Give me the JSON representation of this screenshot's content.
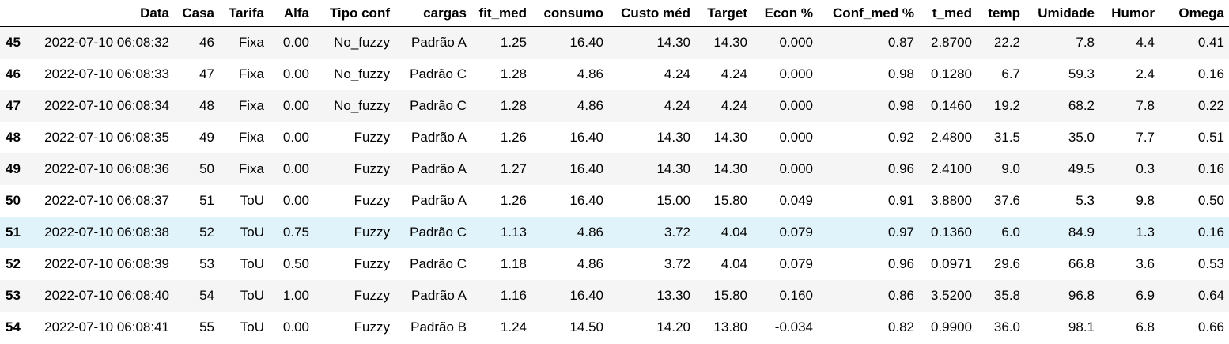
{
  "table": {
    "index_header": "",
    "columns": [
      "Data",
      "Casa",
      "Tarifa",
      "Alfa",
      "Tipo conf",
      "cargas",
      "fit_med",
      "consumo",
      "Custo méd",
      "Target",
      "Econ %",
      "Conf_med %",
      "t_med",
      "temp",
      "Umidade",
      "Humor",
      "Omega"
    ],
    "hovered_row_index": 6,
    "rows": [
      {
        "index": "45",
        "cells": [
          "2022-07-10 06:08:32",
          "46",
          "Fixa",
          "0.00",
          "No_fuzzy",
          "Padrão A",
          "1.25",
          "16.40",
          "14.30",
          "14.30",
          "0.000",
          "0.87",
          "2.8700",
          "22.2",
          "7.8",
          "4.4",
          "0.41"
        ]
      },
      {
        "index": "46",
        "cells": [
          "2022-07-10 06:08:33",
          "47",
          "Fixa",
          "0.00",
          "No_fuzzy",
          "Padrão C",
          "1.28",
          "4.86",
          "4.24",
          "4.24",
          "0.000",
          "0.98",
          "0.1280",
          "6.7",
          "59.3",
          "2.4",
          "0.16"
        ]
      },
      {
        "index": "47",
        "cells": [
          "2022-07-10 06:08:34",
          "48",
          "Fixa",
          "0.00",
          "No_fuzzy",
          "Padrão C",
          "1.28",
          "4.86",
          "4.24",
          "4.24",
          "0.000",
          "0.98",
          "0.1460",
          "19.2",
          "68.2",
          "7.8",
          "0.22"
        ]
      },
      {
        "index": "48",
        "cells": [
          "2022-07-10 06:08:35",
          "49",
          "Fixa",
          "0.00",
          "Fuzzy",
          "Padrão A",
          "1.26",
          "16.40",
          "14.30",
          "14.30",
          "0.000",
          "0.92",
          "2.4800",
          "31.5",
          "35.0",
          "7.7",
          "0.51"
        ]
      },
      {
        "index": "49",
        "cells": [
          "2022-07-10 06:08:36",
          "50",
          "Fixa",
          "0.00",
          "Fuzzy",
          "Padrão A",
          "1.27",
          "16.40",
          "14.30",
          "14.30",
          "0.000",
          "0.96",
          "2.4100",
          "9.0",
          "49.5",
          "0.3",
          "0.16"
        ]
      },
      {
        "index": "50",
        "cells": [
          "2022-07-10 06:08:37",
          "51",
          "ToU",
          "0.00",
          "Fuzzy",
          "Padrão A",
          "1.26",
          "16.40",
          "15.00",
          "15.80",
          "0.049",
          "0.91",
          "3.8800",
          "37.6",
          "5.3",
          "9.8",
          "0.50"
        ]
      },
      {
        "index": "51",
        "cells": [
          "2022-07-10 06:08:38",
          "52",
          "ToU",
          "0.75",
          "Fuzzy",
          "Padrão C",
          "1.13",
          "4.86",
          "3.72",
          "4.04",
          "0.079",
          "0.97",
          "0.1360",
          "6.0",
          "84.9",
          "1.3",
          "0.16"
        ]
      },
      {
        "index": "52",
        "cells": [
          "2022-07-10 06:08:39",
          "53",
          "ToU",
          "0.50",
          "Fuzzy",
          "Padrão C",
          "1.18",
          "4.86",
          "3.72",
          "4.04",
          "0.079",
          "0.96",
          "0.0971",
          "29.6",
          "66.8",
          "3.6",
          "0.53"
        ]
      },
      {
        "index": "53",
        "cells": [
          "2022-07-10 06:08:40",
          "54",
          "ToU",
          "1.00",
          "Fuzzy",
          "Padrão A",
          "1.16",
          "16.40",
          "13.30",
          "15.80",
          "0.160",
          "0.86",
          "3.5200",
          "35.8",
          "96.8",
          "6.9",
          "0.64"
        ]
      },
      {
        "index": "54",
        "cells": [
          "2022-07-10 06:08:41",
          "55",
          "ToU",
          "0.00",
          "Fuzzy",
          "Padrão B",
          "1.24",
          "14.50",
          "14.20",
          "13.80",
          "-0.034",
          "0.82",
          "0.9900",
          "36.0",
          "98.1",
          "6.8",
          "0.66"
        ]
      }
    ]
  }
}
